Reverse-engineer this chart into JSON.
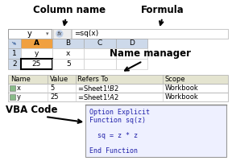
{
  "title_col": "Column name",
  "title_formula": "Formula",
  "title_name_manager": "Name manager",
  "title_vba": "VBA Code",
  "formula_bar_name": "y",
  "formula_bar_formula": "=sq(x)",
  "excel_col_headers": [
    "A",
    "B",
    "C",
    "D"
  ],
  "excel_row1": [
    "y",
    "x",
    "",
    ""
  ],
  "excel_row2": [
    "25",
    "5",
    "",
    ""
  ],
  "name_table_headers": [
    "Name",
    "Value",
    "Refers To",
    "Scope"
  ],
  "name_table_rows": [
    [
      "x",
      "5",
      "=Sheet1!$B$2",
      "Workbook"
    ],
    [
      "y",
      "25",
      "=Sheet1!$A$2",
      "Workbook"
    ]
  ],
  "vba_lines": [
    "Option Explicit",
    "Function sq(z)",
    "",
    "  sq = z * z",
    "",
    "End Function"
  ],
  "bg_color": "#ffffff",
  "excel_header_bg": "#cdd9ea",
  "excel_col_a_bg": "#f0a040",
  "excel_row_hdr_arrow_bg": "#7090c0",
  "vba_bg": "#eef0ff",
  "vba_text_color": "#2222aa",
  "name_table_bg": "#e4e4d0",
  "label_fontsize": 8.5,
  "vba_fontsize": 6.0,
  "table_fontsize": 6.0,
  "excel_fontsize": 6.5
}
